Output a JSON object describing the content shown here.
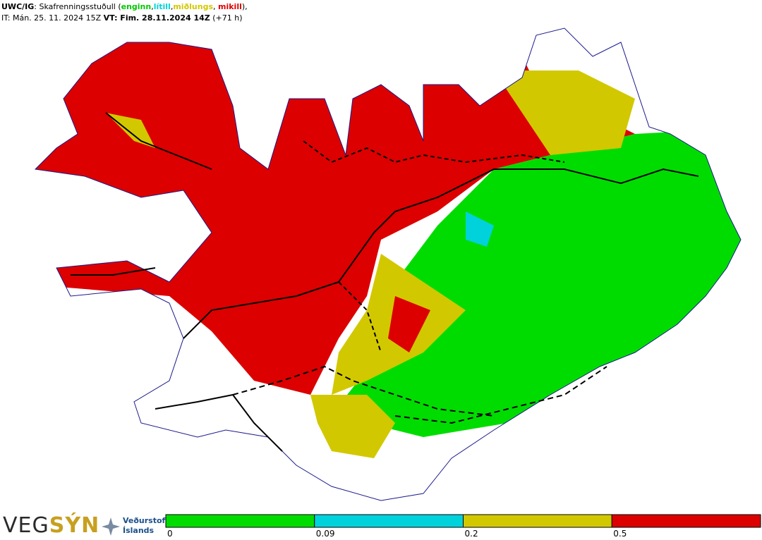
{
  "header": {
    "line1": [
      {
        "text": "UWC/IG",
        "color": "#000000",
        "bold": true
      },
      {
        "text": ": Skafrenningsstuðull (",
        "color": "#000000",
        "bold": false
      },
      {
        "text": "enginn",
        "color": "#00c800",
        "bold": true
      },
      {
        "text": ",",
        "color": "#000000",
        "bold": false
      },
      {
        "text": "lítill",
        "color": "#00d2dc",
        "bold": true
      },
      {
        "text": ",",
        "color": "#000000",
        "bold": false
      },
      {
        "text": "miðlungs",
        "color": "#d2c800",
        "bold": true
      },
      {
        "text": ", ",
        "color": "#000000",
        "bold": false
      },
      {
        "text": "mikill",
        "color": "#dc0000",
        "bold": true
      },
      {
        "text": "),",
        "color": "#000000",
        "bold": false
      }
    ],
    "line2": [
      {
        "text": "IT: Mán. 25. 11. 2024 15Z ",
        "bold": false
      },
      {
        "text": "VT: Fim. 28.11.2024 14Z",
        "bold": true
      },
      {
        "text": " (+71 h)",
        "bold": false
      }
    ]
  },
  "logo": {
    "veg": "VEG",
    "syn": "SÝN",
    "org_line1": "Veðurstofa",
    "org_line2": "Íslands"
  },
  "legend": {
    "ticks": [
      0,
      0.09,
      0.2,
      0.5
    ],
    "colors": [
      "#00dc00",
      "#00d2dc",
      "#d2c800",
      "#dc0000"
    ]
  }
}
